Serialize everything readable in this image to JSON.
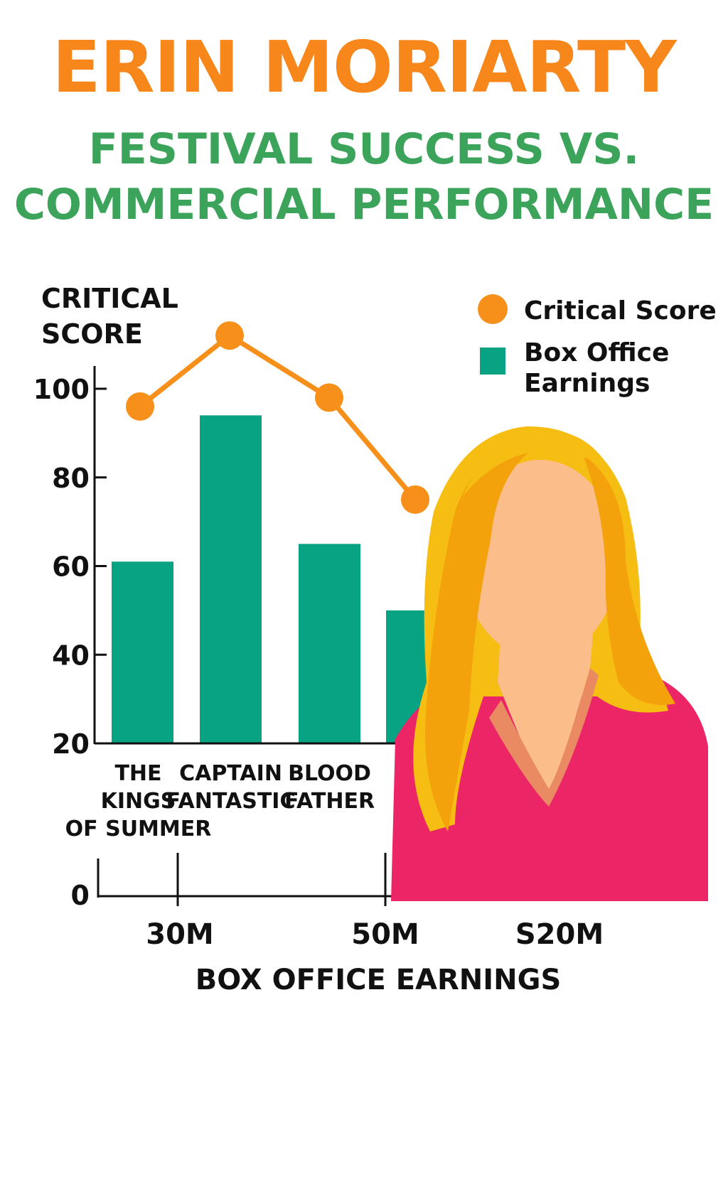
{
  "header": {
    "title": "ERIN MORIARTY",
    "subtitle_line1": "FESTIVAL SUCCESS VS.",
    "subtitle_line2": "COMMERCIAL PERFORMANCE"
  },
  "colors": {
    "title": "#f7861b",
    "subtitle": "#3ca35a",
    "bar": "#07a382",
    "line": "#f7901a",
    "axis": "#111111",
    "hair": "#f6bd12",
    "hair_shadow": "#f3a20b",
    "skin": "#fbbd8a",
    "shirt": "#ec2566"
  },
  "illustration": {
    "name": "woman-portrait-illustration"
  },
  "chart_data": {
    "type": "bar",
    "ylabel_lines": [
      "CRITICAL",
      "SCORE"
    ],
    "xlabel": "BOX OFFICE EARNINGS",
    "yticks_upper": [
      "100",
      "80",
      "60",
      "40",
      "20"
    ],
    "ytick_lower": "0",
    "xticks": [
      "30M",
      "50M",
      "S20M"
    ],
    "categories": [
      {
        "lines": [
          "THE",
          "KINGS",
          "OF SUMMER"
        ]
      },
      {
        "lines": [
          "CAPTAIN",
          "FANTASTIC"
        ]
      },
      {
        "lines": [
          "BLOOD",
          "FATHER"
        ]
      },
      {
        "lines": []
      }
    ],
    "ylim": [
      20,
      100
    ],
    "series": [
      {
        "name": "Box Office Earnings",
        "type": "bar",
        "values": [
          61,
          94,
          65,
          50
        ]
      },
      {
        "name": "Critical Score",
        "type": "line",
        "values": [
          96,
          112,
          98,
          75
        ]
      }
    ],
    "legend": {
      "position": "top-right",
      "items": [
        {
          "lines": [
            "Critical Score"
          ],
          "marker": "circle",
          "series": 1
        },
        {
          "lines": [
            "Box Office",
            "Earnings"
          ],
          "marker": "square",
          "series": 0
        }
      ]
    }
  }
}
